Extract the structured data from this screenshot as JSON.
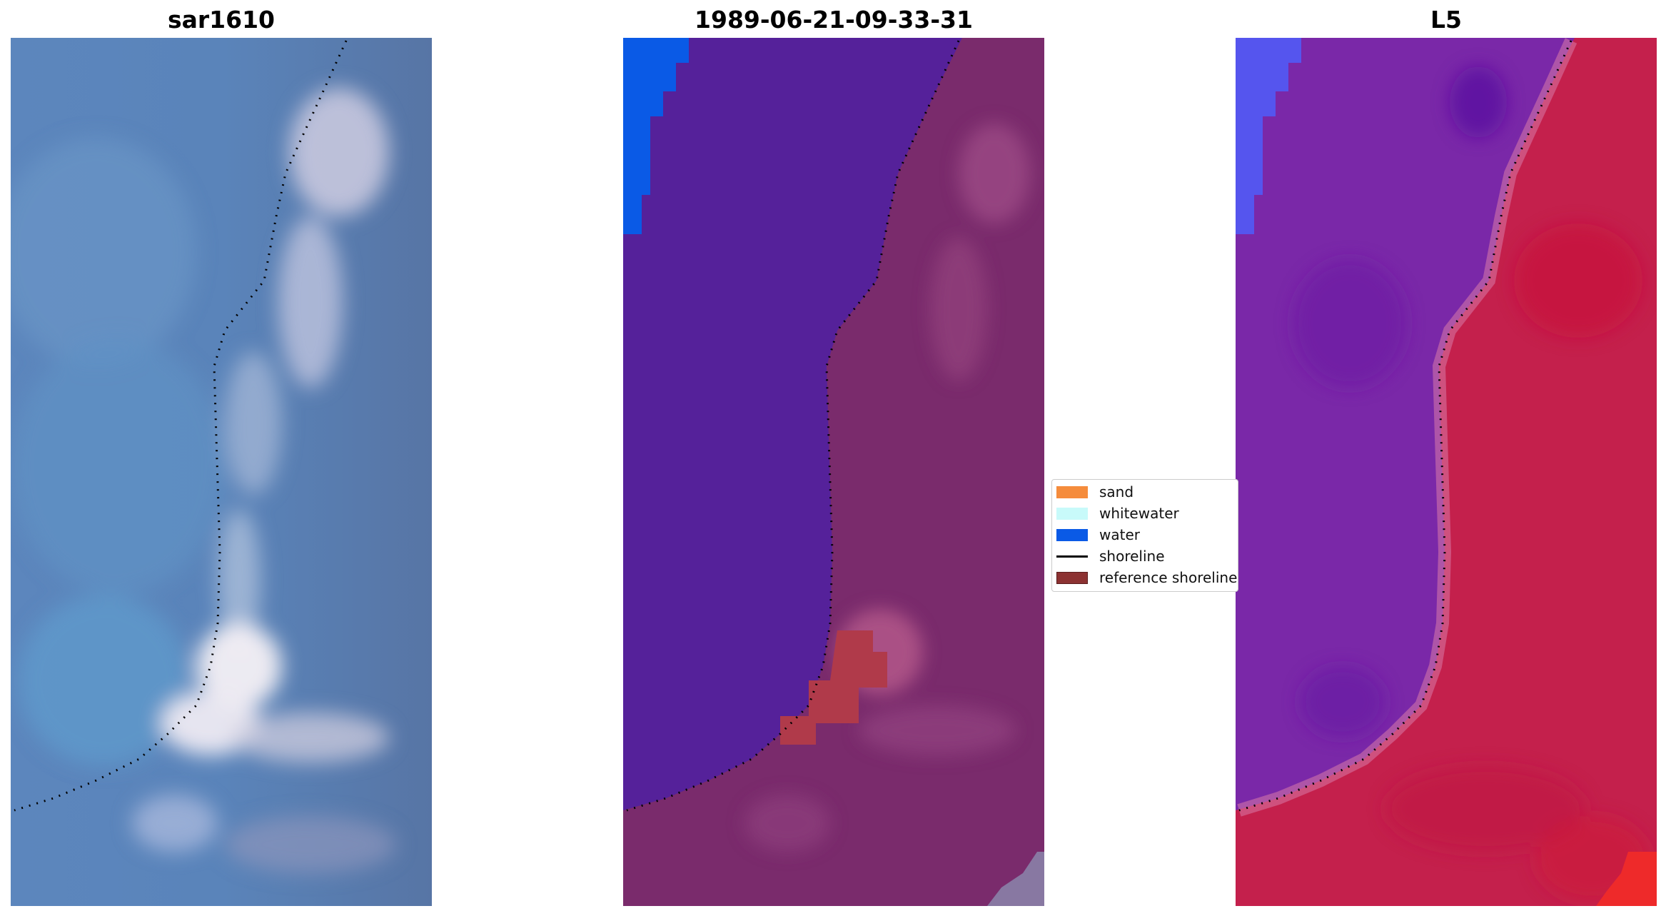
{
  "panels": [
    {
      "title": "sar1610"
    },
    {
      "title": "1989-06-21-09-33-31"
    },
    {
      "title": "L5"
    }
  ],
  "legend": {
    "items": [
      {
        "label": "sand",
        "color": "#f58c3c"
      },
      {
        "label": "whitewater",
        "color": "#c8fafa"
      },
      {
        "label": "water",
        "color": "#0a5ae6"
      },
      {
        "label": "shoreline",
        "color": "#000000"
      },
      {
        "label": "reference shoreline",
        "color": "#8c3232"
      }
    ]
  },
  "colors": {
    "rgb_water": "#4f7fb4",
    "rgb_land": "#5a76a4",
    "rgb_surf": "#d6d7e8",
    "class_water": "#55219a",
    "class_land": "#7a2b6c",
    "class_water_patch": "#0a5ae6",
    "class_reference": "#b03a4a",
    "ndwi_water": "#7a28a8",
    "ndwi_land": "#c4204c",
    "ndwi_blue": "#5555ee"
  }
}
